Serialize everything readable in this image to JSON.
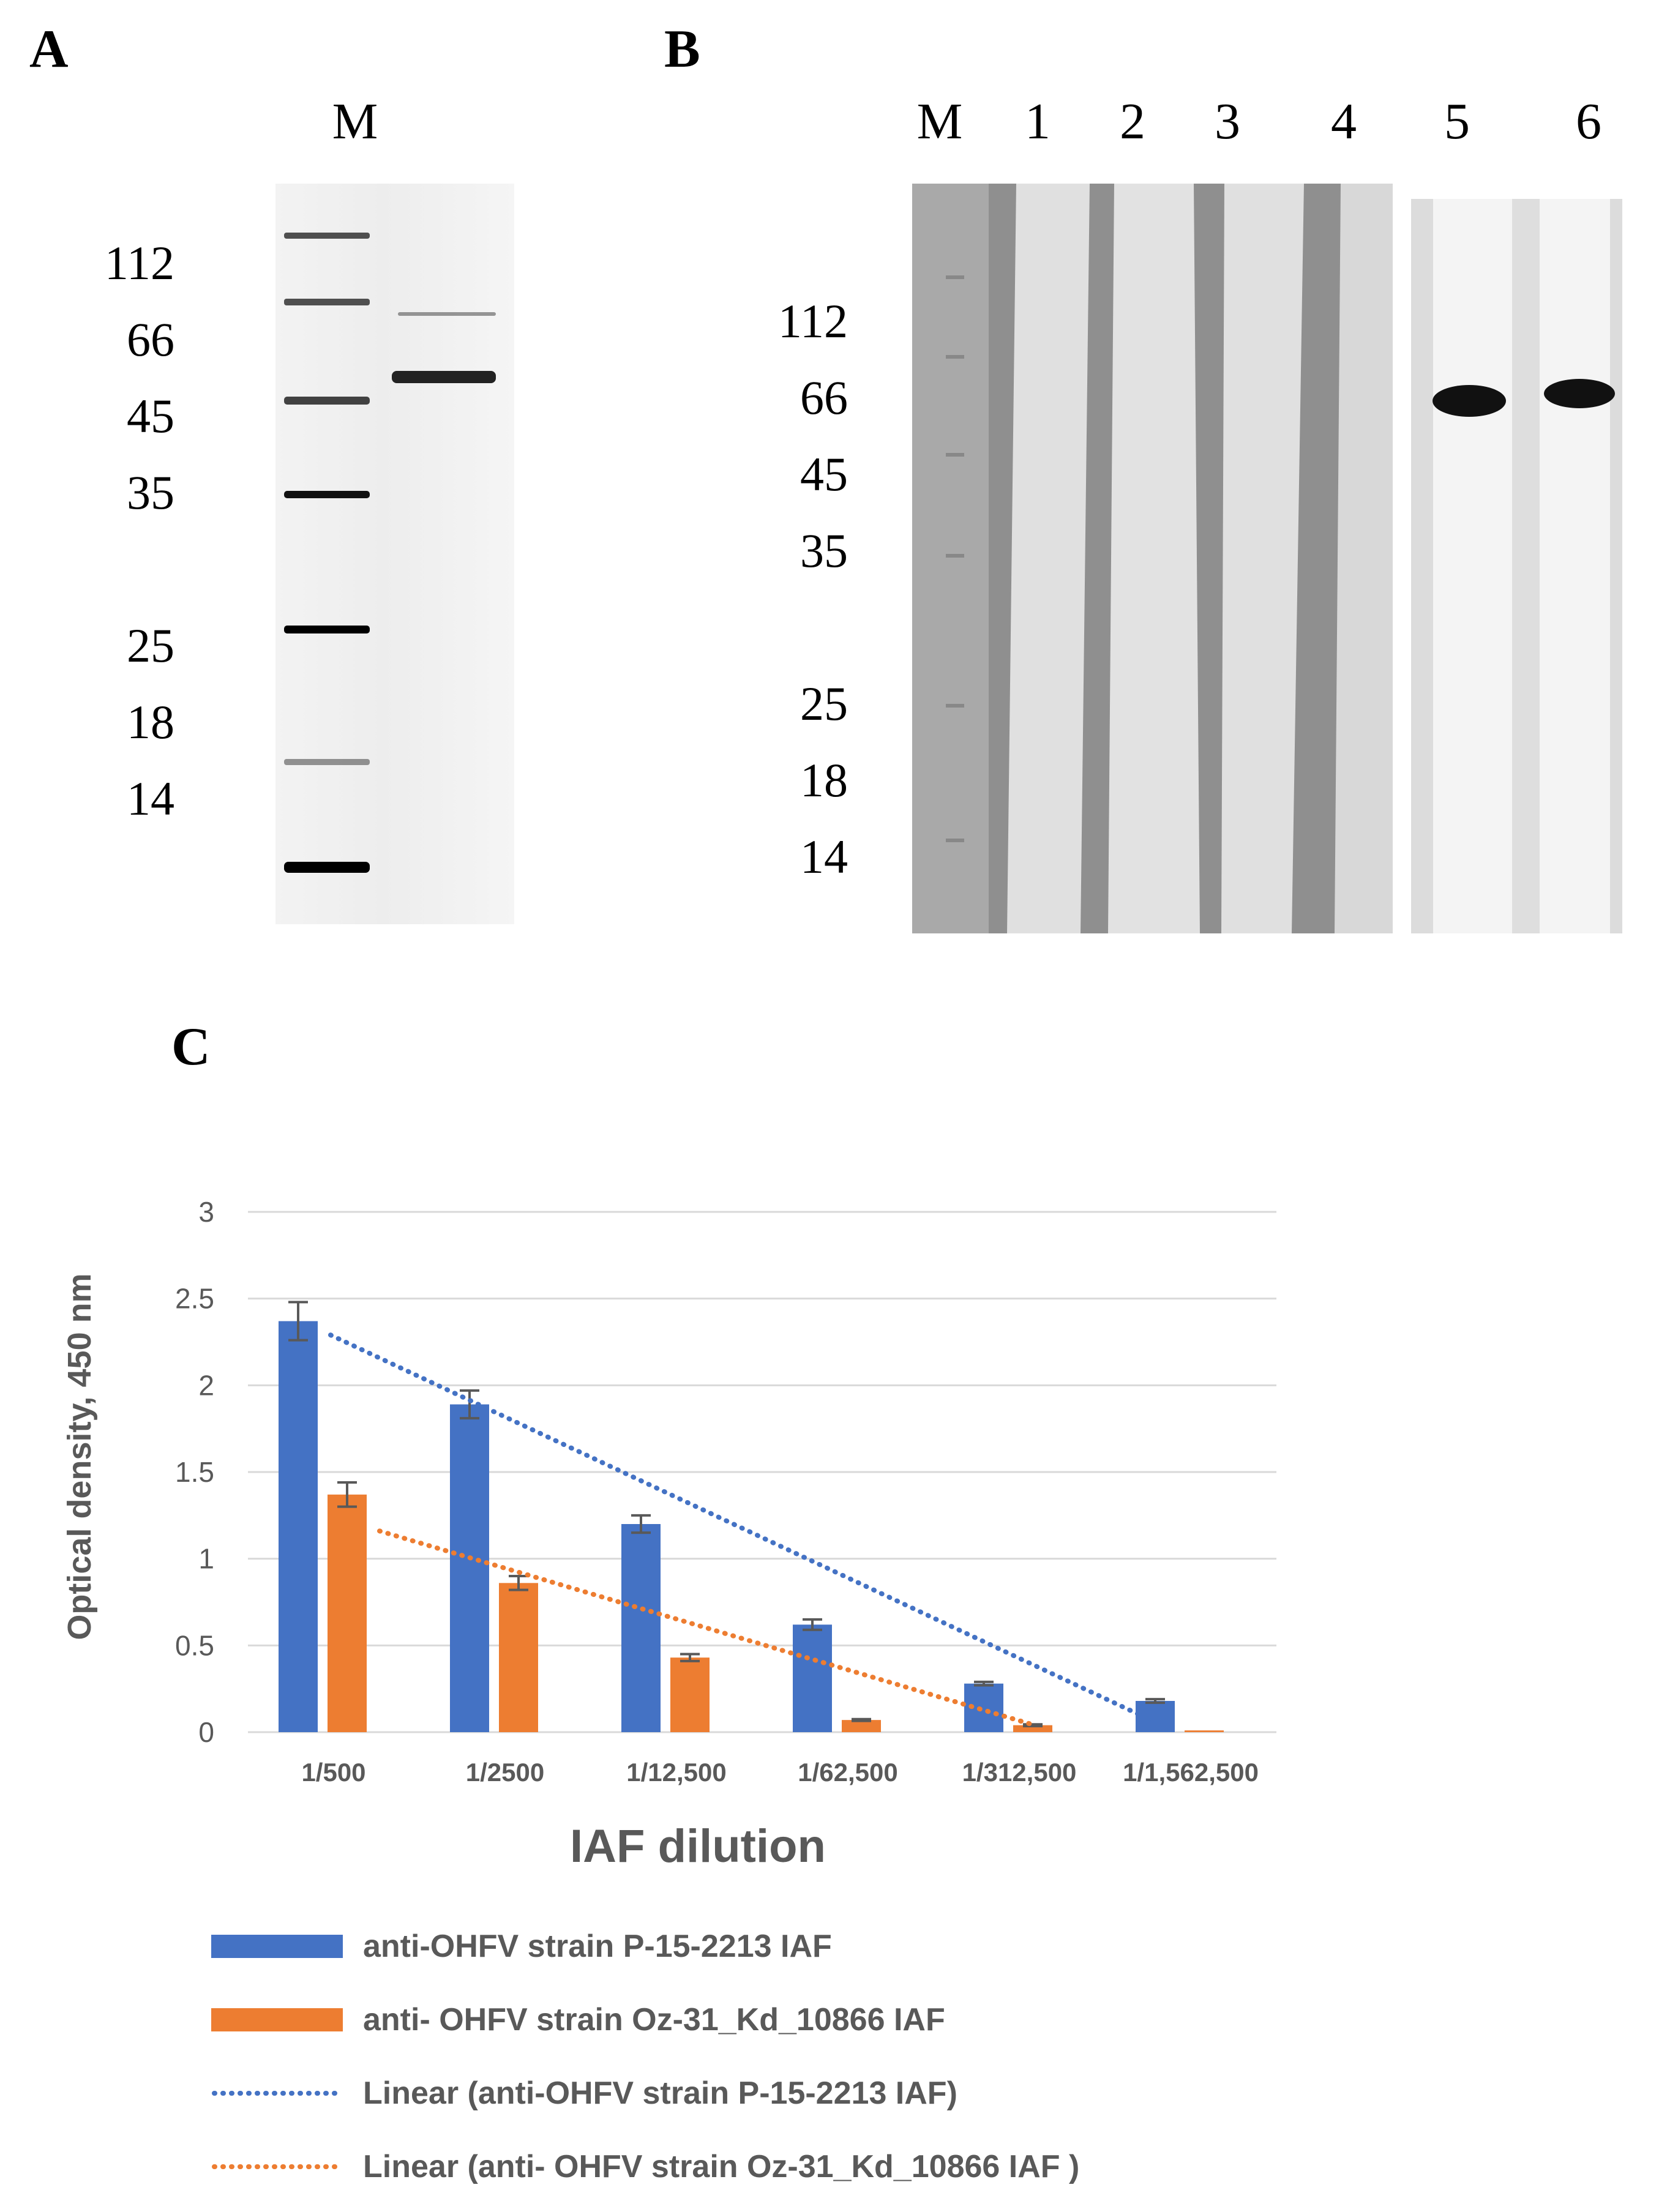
{
  "panelA": {
    "letter": "A",
    "lane_labels": [
      "M"
    ],
    "mw_markers": [
      "112",
      "66",
      "45",
      "35",
      "25",
      "18",
      "14"
    ]
  },
  "panelB": {
    "letter": "B",
    "lane_labels": [
      "M",
      "1",
      "2",
      "3",
      "4",
      "5",
      "6"
    ],
    "mw_markers": [
      "112",
      "66",
      "45",
      "35",
      "25",
      "18",
      "14"
    ]
  },
  "panelC": {
    "letter": "C"
  },
  "chart_data": {
    "type": "bar",
    "title": "",
    "xlabel": "IAF dilution",
    "ylabel": "Optical density, 450 nm",
    "ylim": [
      0,
      3
    ],
    "yticks": [
      "0",
      "0.5",
      "1",
      "1.5",
      "2",
      "2.5",
      "3"
    ],
    "grid": true,
    "legend_position": "bottom",
    "categories": [
      "1/500",
      "1/2500",
      "1/12,500",
      "1/62,500",
      "1/312,500",
      "1/1,562,500"
    ],
    "series": [
      {
        "name": "anti-OHFV strain P-15-2213 IAF",
        "color": "#4472C4",
        "values": [
          2.37,
          1.89,
          1.2,
          0.62,
          0.28,
          0.18
        ],
        "errors": [
          0.11,
          0.08,
          0.05,
          0.03,
          0.01,
          0.01
        ]
      },
      {
        "name": "anti- OHFV strain Oz-31_Kd_10866 IAF",
        "color": "#ED7D31",
        "values": [
          1.37,
          0.86,
          0.43,
          0.07,
          0.04,
          0.01
        ],
        "errors": [
          0.07,
          0.04,
          0.02,
          0.005,
          0.005,
          0.0
        ]
      }
    ],
    "trendlines": [
      {
        "name": "Linear (anti-OHFV strain P-15-2213 IAF)",
        "color": "#4472C4",
        "start": 2.29,
        "end": 0.02
      },
      {
        "name": "Linear (anti- OHFV strain Oz-31_Kd_10866 IAF )",
        "color": "#ED7D31",
        "start": 1.16,
        "end": 0.04
      }
    ]
  }
}
